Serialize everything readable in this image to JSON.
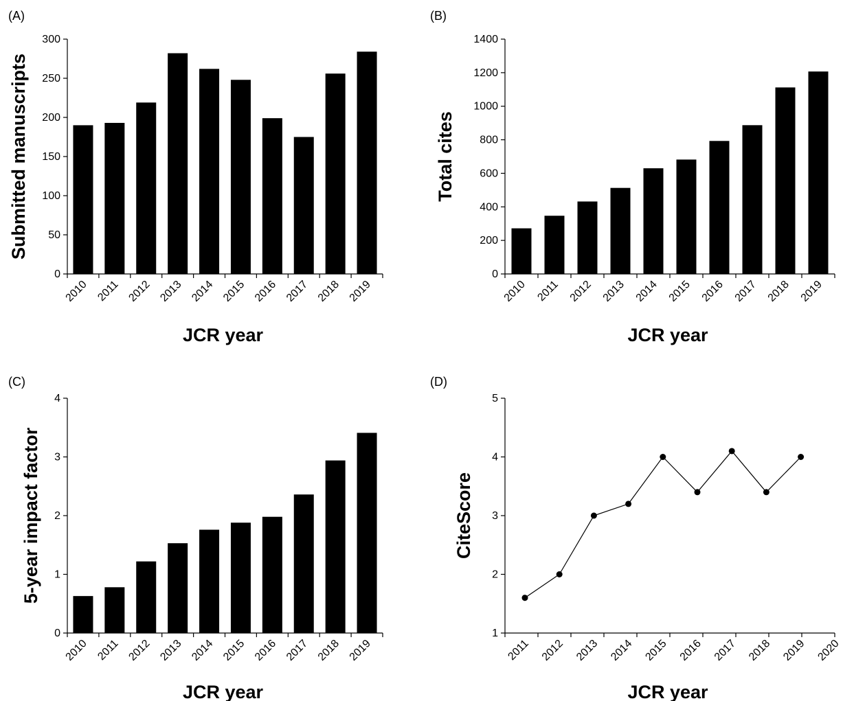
{
  "chart_data": [
    {
      "panel": "(A)",
      "type": "bar",
      "categories": [
        "2010",
        "2011",
        "2012",
        "2013",
        "2014",
        "2015",
        "2016",
        "2017",
        "2018",
        "2019"
      ],
      "values": [
        190,
        193,
        219,
        282,
        262,
        248,
        199,
        175,
        256,
        284
      ],
      "xlabel": "JCR year",
      "ylabel": "Submitted manuscripts",
      "ylim": [
        0,
        300
      ],
      "yticks": [
        0,
        50,
        100,
        150,
        200,
        250,
        300
      ],
      "grid": false,
      "color": "#000000"
    },
    {
      "panel": "(B)",
      "type": "bar",
      "categories": [
        "2010",
        "2011",
        "2012",
        "2013",
        "2014",
        "2015",
        "2016",
        "2017",
        "2018",
        "2019"
      ],
      "values": [
        272,
        347,
        432,
        513,
        630,
        682,
        793,
        887,
        1112,
        1207
      ],
      "xlabel": "JCR year",
      "ylabel": "Total cites",
      "ylim": [
        0,
        1400
      ],
      "yticks": [
        0,
        200,
        400,
        600,
        800,
        1000,
        1200,
        1400
      ],
      "grid": false,
      "color": "#000000"
    },
    {
      "panel": "(C)",
      "type": "bar",
      "categories": [
        "2010",
        "2011",
        "2012",
        "2013",
        "2014",
        "2015",
        "2016",
        "2017",
        "2018",
        "2019"
      ],
      "values": [
        0.63,
        0.78,
        1.22,
        1.53,
        1.76,
        1.88,
        1.98,
        2.36,
        2.94,
        3.41
      ],
      "xlabel": "JCR year",
      "ylabel": "5-year impact factor",
      "ylim": [
        0,
        4
      ],
      "yticks": [
        0,
        1,
        2,
        3,
        4
      ],
      "grid": false,
      "color": "#000000"
    },
    {
      "panel": "(D)",
      "type": "line",
      "categories": [
        "2011",
        "2012",
        "2013",
        "2014",
        "2015",
        "2016",
        "2017",
        "2018",
        "2019",
        "2020"
      ],
      "x": [
        2011,
        2012,
        2013,
        2014,
        2015,
        2016,
        2017,
        2018,
        2019
      ],
      "values": [
        1.6,
        2.0,
        3.0,
        3.2,
        4.0,
        3.4,
        4.1,
        3.4,
        4.0
      ],
      "xlabel": "JCR year",
      "ylabel": "CiteScore",
      "ylim": [
        1,
        5
      ],
      "yticks": [
        1,
        2,
        3,
        4,
        5
      ],
      "grid": false,
      "color": "#000000"
    }
  ]
}
